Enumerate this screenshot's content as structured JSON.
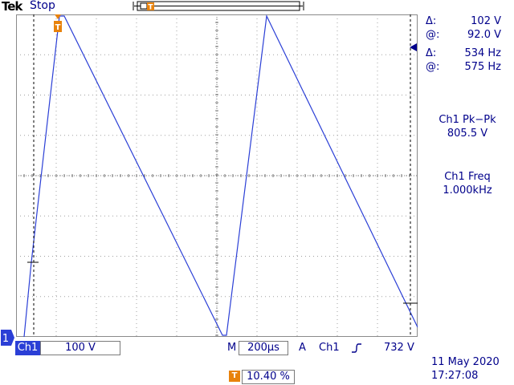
{
  "header": {
    "brand": "Tek",
    "status": "Stop",
    "trigger_marker": "T"
  },
  "cursor_readout": {
    "voltage_delta_label": "Δ:",
    "voltage_delta_value": "102 V",
    "voltage_at_label": "@:",
    "voltage_at_value": "92.0 V",
    "freq_delta_label": "Δ:",
    "freq_delta_value": "534 Hz",
    "freq_at_label": "@:",
    "freq_at_value": "575 Hz"
  },
  "measurements": [
    {
      "label": "Ch1 Pk−Pk",
      "value": "805.5 V"
    },
    {
      "label": "Ch1 Freq",
      "value": "1.000kHz"
    }
  ],
  "channel": {
    "marker": "1",
    "name": "Ch1",
    "scale": "100 V",
    "color": "#2b3fd6"
  },
  "timebase": {
    "prefix": "M",
    "value": "200µs"
  },
  "trigger": {
    "prefix": "A",
    "source": "Ch1",
    "slope_icon": "rising-edge-icon",
    "level": "732 V",
    "position_marker": "T",
    "position": "10.40 %"
  },
  "datetime": {
    "date": "11 May 2020",
    "time": "17:27:08"
  },
  "colors": {
    "text": "#00008b",
    "trace": "#2b3fd6",
    "grid": "#a0a0a0",
    "trigger_marker": "#e8820c"
  }
}
